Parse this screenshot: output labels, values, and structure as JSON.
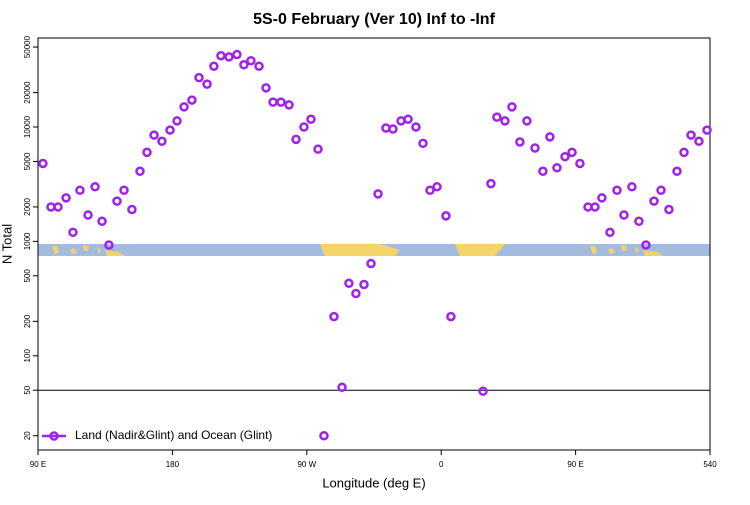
{
  "chart_data": {
    "type": "scatter",
    "title": "5S-0 February (Ver 10)   Inf to -Inf",
    "x_label": "Longitude (deg E)",
    "y_label": "N Total",
    "xlim": [
      90,
      540
    ],
    "xticks": [
      {
        "value": 90,
        "label": "90 E"
      },
      180,
      {
        "value": 270,
        "label": "90 W"
      },
      {
        "value": 360,
        "label": "0"
      },
      {
        "value": 450,
        "label": "90 E"
      },
      540
    ],
    "ylim": [
      15,
      60000
    ],
    "yscale": "log",
    "yticks": [
      20,
      50,
      100,
      200,
      500,
      1000,
      2000,
      5000,
      10000,
      20000,
      50000
    ],
    "hline": 50,
    "legend": "bottomleft",
    "series": [
      {
        "name": "Land (Nadir&Glint) and Ocean (Glint)",
        "color": "#a020f0",
        "x": [
          93.3,
          98.7,
          103.4,
          108.8,
          113.4,
          118.1,
          123.5,
          128.2,
          132.9,
          137.5,
          142.9,
          147.6,
          152.9,
          158.3,
          163.0,
          167.7,
          173.0,
          178.4,
          183.1,
          187.8,
          193.1,
          197.8,
          203.2,
          207.8,
          212.5,
          217.9,
          223.2,
          227.9,
          232.6,
          238.0,
          242.7,
          247.4,
          252.7,
          258.1,
          262.8,
          268.1,
          272.8,
          277.5,
          281.5,
          288.2,
          293.6,
          298.2,
          302.9,
          308.3,
          313.0,
          317.7,
          323.0,
          327.7,
          333.1,
          337.8,
          343.1,
          347.8,
          352.5,
          357.2,
          363.2,
          366.5,
          388.0,
          393.3,
          397.3,
          402.7,
          407.4,
          412.7,
          417.4,
          422.8,
          428.1,
          432.8,
          437.5,
          442.9,
          447.6,
          452.9,
          458.3,
          463.0,
          467.6,
          473.0,
          477.7,
          482.4,
          487.7,
          492.4,
          497.1,
          502.5,
          507.2,
          512.5,
          517.9,
          522.6,
          527.3,
          532.6,
          538.0
        ],
        "values": [
          4800,
          2000,
          2000,
          2400,
          1200,
          2800,
          1700,
          3000,
          1500,
          930,
          2250,
          2800,
          1900,
          4100,
          6000,
          8500,
          7500,
          9400,
          11300,
          15000,
          17200,
          27000,
          23700,
          34000,
          42000,
          41000,
          43000,
          35000,
          38000,
          34000,
          22000,
          16500,
          16500,
          15600,
          7800,
          10000,
          11700,
          6400,
          20,
          220,
          53,
          430,
          350,
          420,
          640,
          2600,
          9800,
          9600,
          11300,
          11700,
          10000,
          7200,
          2800,
          3000,
          1670,
          220,
          49,
          3200,
          12200,
          11300,
          15000,
          7400,
          11300,
          6550,
          4100,
          8200,
          4400,
          5500,
          6000,
          4800,
          2000,
          2000,
          2400,
          1200,
          2800,
          1700,
          3000,
          1500,
          930,
          2250,
          2800,
          1900,
          4100,
          6000,
          8500,
          7500,
          9400
        ]
      }
    ]
  }
}
